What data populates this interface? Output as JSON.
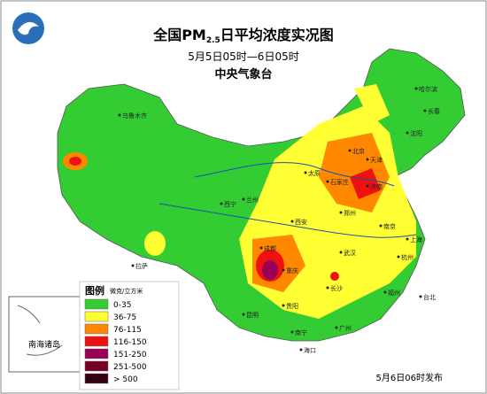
{
  "header": {
    "title_prefix": "全国PM",
    "title_sub": "2.5",
    "title_suffix": "日平均浓度实况图",
    "subtitle": "5月5日05时—6日05时",
    "issuer": "中央气象台"
  },
  "legend": {
    "title": "图例",
    "unit": "微克/立方米",
    "items": [
      {
        "label": "0-35",
        "color": "#33cc33"
      },
      {
        "label": "36-75",
        "color": "#ffff33"
      },
      {
        "label": "76-115",
        "color": "#ff8800"
      },
      {
        "label": "116-150",
        "color": "#ee1111"
      },
      {
        "label": "151-250",
        "color": "#990055"
      },
      {
        "label": "251-500",
        "color": "#770022"
      },
      {
        "label": "> 500",
        "color": "#330011"
      }
    ]
  },
  "inset": {
    "label": "南海诸岛"
  },
  "cities": [
    "乌鲁木齐",
    "哈尔滨",
    "长春",
    "沈阳",
    "北京",
    "天津",
    "石家庄",
    "太原",
    "济南",
    "郑州",
    "西安",
    "兰州",
    "西宁",
    "成都",
    "重庆",
    "武汉",
    "长沙",
    "南京",
    "上海",
    "杭州",
    "福州",
    "广州",
    "南宁",
    "贵阳",
    "昆明",
    "拉萨",
    "台北",
    "海口"
  ],
  "footer": "5月6日06时发布"
}
